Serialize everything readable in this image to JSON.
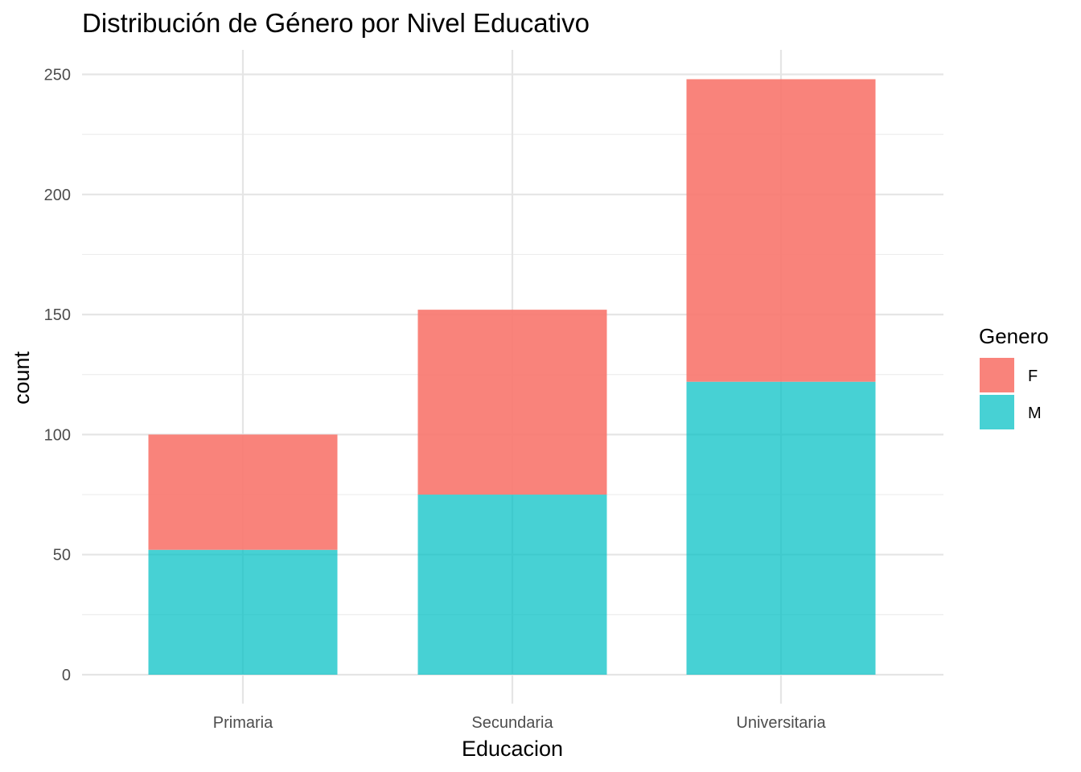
{
  "chart_data": {
    "type": "bar",
    "stacked": true,
    "title": "Distribución de Género por Nivel Educativo",
    "xlabel": "Educacion",
    "ylabel": "count",
    "categories": [
      "Primaria",
      "Secundaria",
      "Universitaria"
    ],
    "series": [
      {
        "name": "F",
        "values": [
          48,
          77,
          126
        ],
        "color": "#F8766D"
      },
      {
        "name": "M",
        "values": [
          52,
          75,
          122
        ],
        "color": "#00BFC4"
      }
    ],
    "stack_order_top_to_bottom": [
      "F",
      "M"
    ],
    "ylim": [
      0,
      260
    ],
    "yticks": [
      0,
      50,
      100,
      150,
      200,
      250
    ],
    "grid": true,
    "legend": {
      "title": "Genero",
      "position": "right",
      "labels": [
        "F",
        "M"
      ]
    }
  }
}
